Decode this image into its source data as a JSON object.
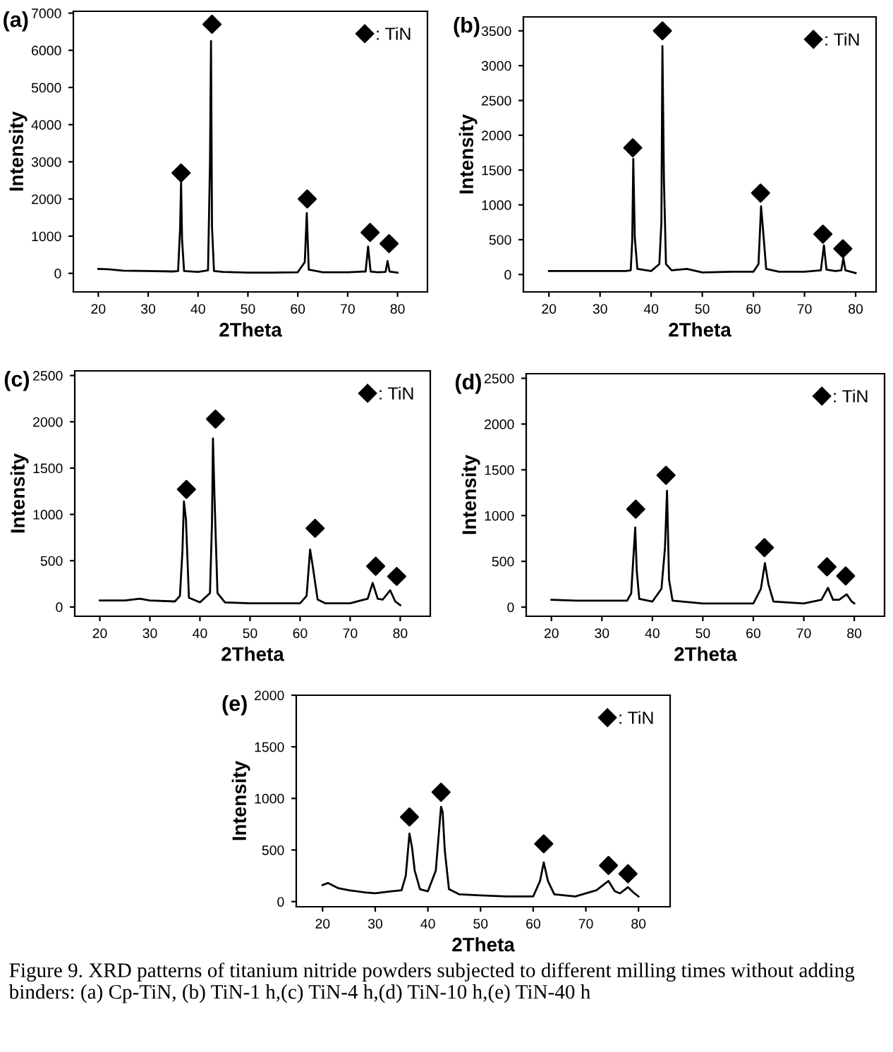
{
  "chart_data": [
    {
      "type": "line",
      "title": "(a)",
      "xlabel": "2Theta",
      "ylabel": "Intensity",
      "xlim": [
        15,
        86
      ],
      "xticks": [
        20,
        30,
        40,
        50,
        60,
        70,
        80
      ],
      "ylim": [
        -500,
        7050
      ],
      "yticks": [
        0,
        1000,
        2000,
        3000,
        4000,
        5000,
        6000,
        7000
      ],
      "legend": "top right",
      "grid": false,
      "series": [
        {
          "color": "#000000",
          "x": [
            20,
            22,
            25,
            30,
            35,
            36,
            36.4,
            36.6,
            36.8,
            37.2,
            40,
            42,
            42.4,
            42.6,
            42.8,
            43.2,
            45,
            50,
            55,
            60,
            61.4,
            61.8,
            62.2,
            65,
            70,
            73.6,
            74.1,
            74.6,
            76,
            77.6,
            78,
            78.4,
            80
          ],
          "values": [
            120,
            110,
            70,
            60,
            50,
            60,
            1200,
            2450,
            900,
            60,
            40,
            80,
            3000,
            6250,
            1250,
            60,
            40,
            20,
            20,
            30,
            300,
            1620,
            100,
            30,
            30,
            50,
            720,
            50,
            30,
            40,
            330,
            50,
            20
          ]
        },
        {
          "type": "scatter",
          "name": ": TiN",
          "marker": "diamond",
          "color": "#000000",
          "x": [
            36.6,
            42.8,
            61.9,
            74.5,
            78.3
          ],
          "values": [
            2700,
            6700,
            2000,
            1100,
            800
          ]
        }
      ]
    },
    {
      "type": "line",
      "title": "(b)",
      "xlabel": "2Theta",
      "ylabel": "Intensity",
      "xlim": [
        15,
        84
      ],
      "xticks": [
        20,
        30,
        40,
        50,
        60,
        70,
        80
      ],
      "ylim": [
        -250,
        3700
      ],
      "yticks": [
        0,
        500,
        1000,
        1500,
        2000,
        2500,
        3000,
        3500
      ],
      "legend": "top right",
      "grid": false,
      "series": [
        {
          "color": "#000000",
          "x": [
            20,
            25,
            30,
            35,
            36,
            36.3,
            36.5,
            36.8,
            37.3,
            40,
            41.6,
            42,
            42.2,
            42.5,
            42.9,
            44,
            47,
            50,
            56,
            60,
            61,
            61.5,
            61.9,
            62.5,
            65,
            70,
            73.2,
            73.8,
            74.3,
            76,
            77.2,
            77.6,
            78,
            80
          ],
          "values": [
            50,
            50,
            50,
            50,
            60,
            500,
            1660,
            530,
            80,
            50,
            150,
            750,
            3280,
            1350,
            150,
            60,
            80,
            30,
            40,
            40,
            150,
            980,
            630,
            80,
            40,
            40,
            60,
            420,
            70,
            50,
            60,
            240,
            60,
            20
          ]
        },
        {
          "type": "scatter",
          "name": ": TiN",
          "marker": "diamond",
          "color": "#000000",
          "x": [
            36.4,
            42.2,
            61.4,
            73.6,
            77.5
          ],
          "values": [
            1820,
            3500,
            1170,
            580,
            370
          ]
        }
      ]
    },
    {
      "type": "line",
      "title": "(c)",
      "xlabel": "2Theta",
      "ylabel": "Intensity",
      "xlim": [
        15,
        86
      ],
      "xticks": [
        20,
        30,
        40,
        50,
        60,
        70,
        80
      ],
      "ylim": [
        -100,
        2550
      ],
      "yticks": [
        0,
        500,
        1000,
        1500,
        2000,
        2500
      ],
      "legend": "top right",
      "grid": false,
      "series": [
        {
          "color": "#000000",
          "x": [
            20,
            25,
            28,
            30,
            35,
            36,
            36.5,
            36.8,
            37.2,
            37.8,
            40,
            42,
            42.4,
            42.6,
            42.9,
            43.5,
            45,
            50,
            55,
            60,
            61.3,
            62,
            62.5,
            63.5,
            65,
            70,
            73.5,
            74.5,
            75.5,
            76.5,
            78,
            79,
            80
          ],
          "values": [
            70,
            70,
            90,
            70,
            60,
            120,
            600,
            1140,
            950,
            100,
            50,
            150,
            900,
            1820,
            1200,
            150,
            50,
            40,
            40,
            40,
            120,
            620,
            450,
            80,
            40,
            40,
            90,
            260,
            90,
            80,
            180,
            60,
            20
          ]
        },
        {
          "type": "scatter",
          "name": ": TiN",
          "marker": "diamond",
          "color": "#000000",
          "x": [
            37.3,
            43.1,
            63,
            75.1,
            79.3
          ],
          "values": [
            1270,
            2030,
            850,
            440,
            330
          ]
        }
      ]
    },
    {
      "type": "line",
      "title": "(d)",
      "xlabel": "2Theta",
      "ylabel": "Intensity",
      "xlim": [
        15,
        86
      ],
      "xticks": [
        20,
        30,
        40,
        50,
        60,
        70,
        80
      ],
      "ylim": [
        -100,
        2550
      ],
      "yticks": [
        0,
        500,
        1000,
        1500,
        2000,
        2500
      ],
      "legend": "top right",
      "grid": false,
      "series": [
        {
          "color": "#000000",
          "x": [
            20,
            25,
            30,
            35,
            35.8,
            36.3,
            36.6,
            36.9,
            37.4,
            40,
            41.8,
            42.5,
            42.9,
            43.3,
            44,
            50,
            55,
            60,
            61.5,
            62.3,
            63,
            64,
            70,
            73.5,
            74.8,
            75.8,
            77,
            78.5,
            79.5,
            80
          ],
          "values": [
            80,
            70,
            70,
            70,
            150,
            600,
            870,
            400,
            90,
            60,
            200,
            650,
            1270,
            300,
            70,
            40,
            40,
            40,
            200,
            480,
            250,
            60,
            40,
            80,
            210,
            80,
            80,
            140,
            60,
            40
          ]
        },
        {
          "type": "scatter",
          "name": ": TiN",
          "marker": "diamond",
          "color": "#000000",
          "x": [
            36.7,
            42.7,
            62.2,
            74.6,
            78.3
          ],
          "values": [
            1070,
            1440,
            650,
            440,
            340
          ]
        }
      ]
    },
    {
      "type": "line",
      "title": "(e)",
      "xlabel": "2Theta",
      "ylabel": "Intensity",
      "xlim": [
        15,
        86
      ],
      "xticks": [
        20,
        30,
        40,
        50,
        60,
        70,
        80
      ],
      "ylim": [
        -50,
        2000
      ],
      "yticks": [
        0,
        500,
        1000,
        1500,
        2000
      ],
      "legend": "top right",
      "grid": false,
      "annotations": [
        "Figure 9. XRD patterns of titanium nitride powders subjected to different milling times without adding binders: (a) Cp-TiN, (b) TiN-1 h,(c) TiN-4 h,(d) TiN-10 h,(e) TiN-40 h"
      ],
      "series": [
        {
          "color": "#000000",
          "x": [
            20,
            21,
            23,
            25,
            28,
            30,
            33,
            35,
            35.8,
            36.5,
            37,
            37.5,
            38.5,
            40,
            41.5,
            42.3,
            42.5,
            42.8,
            43.2,
            44,
            46,
            50,
            55,
            60,
            61.3,
            62,
            62.8,
            64,
            68,
            72,
            74.3,
            75.5,
            76.5,
            77.5,
            78,
            79,
            80
          ],
          "values": [
            160,
            180,
            130,
            110,
            90,
            80,
            100,
            110,
            250,
            660,
            520,
            300,
            120,
            100,
            300,
            800,
            920,
            870,
            500,
            120,
            70,
            60,
            50,
            50,
            200,
            380,
            200,
            70,
            50,
            110,
            200,
            100,
            80,
            120,
            140,
            90,
            50
          ]
        },
        {
          "type": "scatter",
          "name": ": TiN",
          "marker": "diamond",
          "color": "#000000",
          "x": [
            36.5,
            42.5,
            62,
            74.3,
            78
          ],
          "values": [
            820,
            1060,
            560,
            350,
            270
          ]
        }
      ]
    }
  ]
}
